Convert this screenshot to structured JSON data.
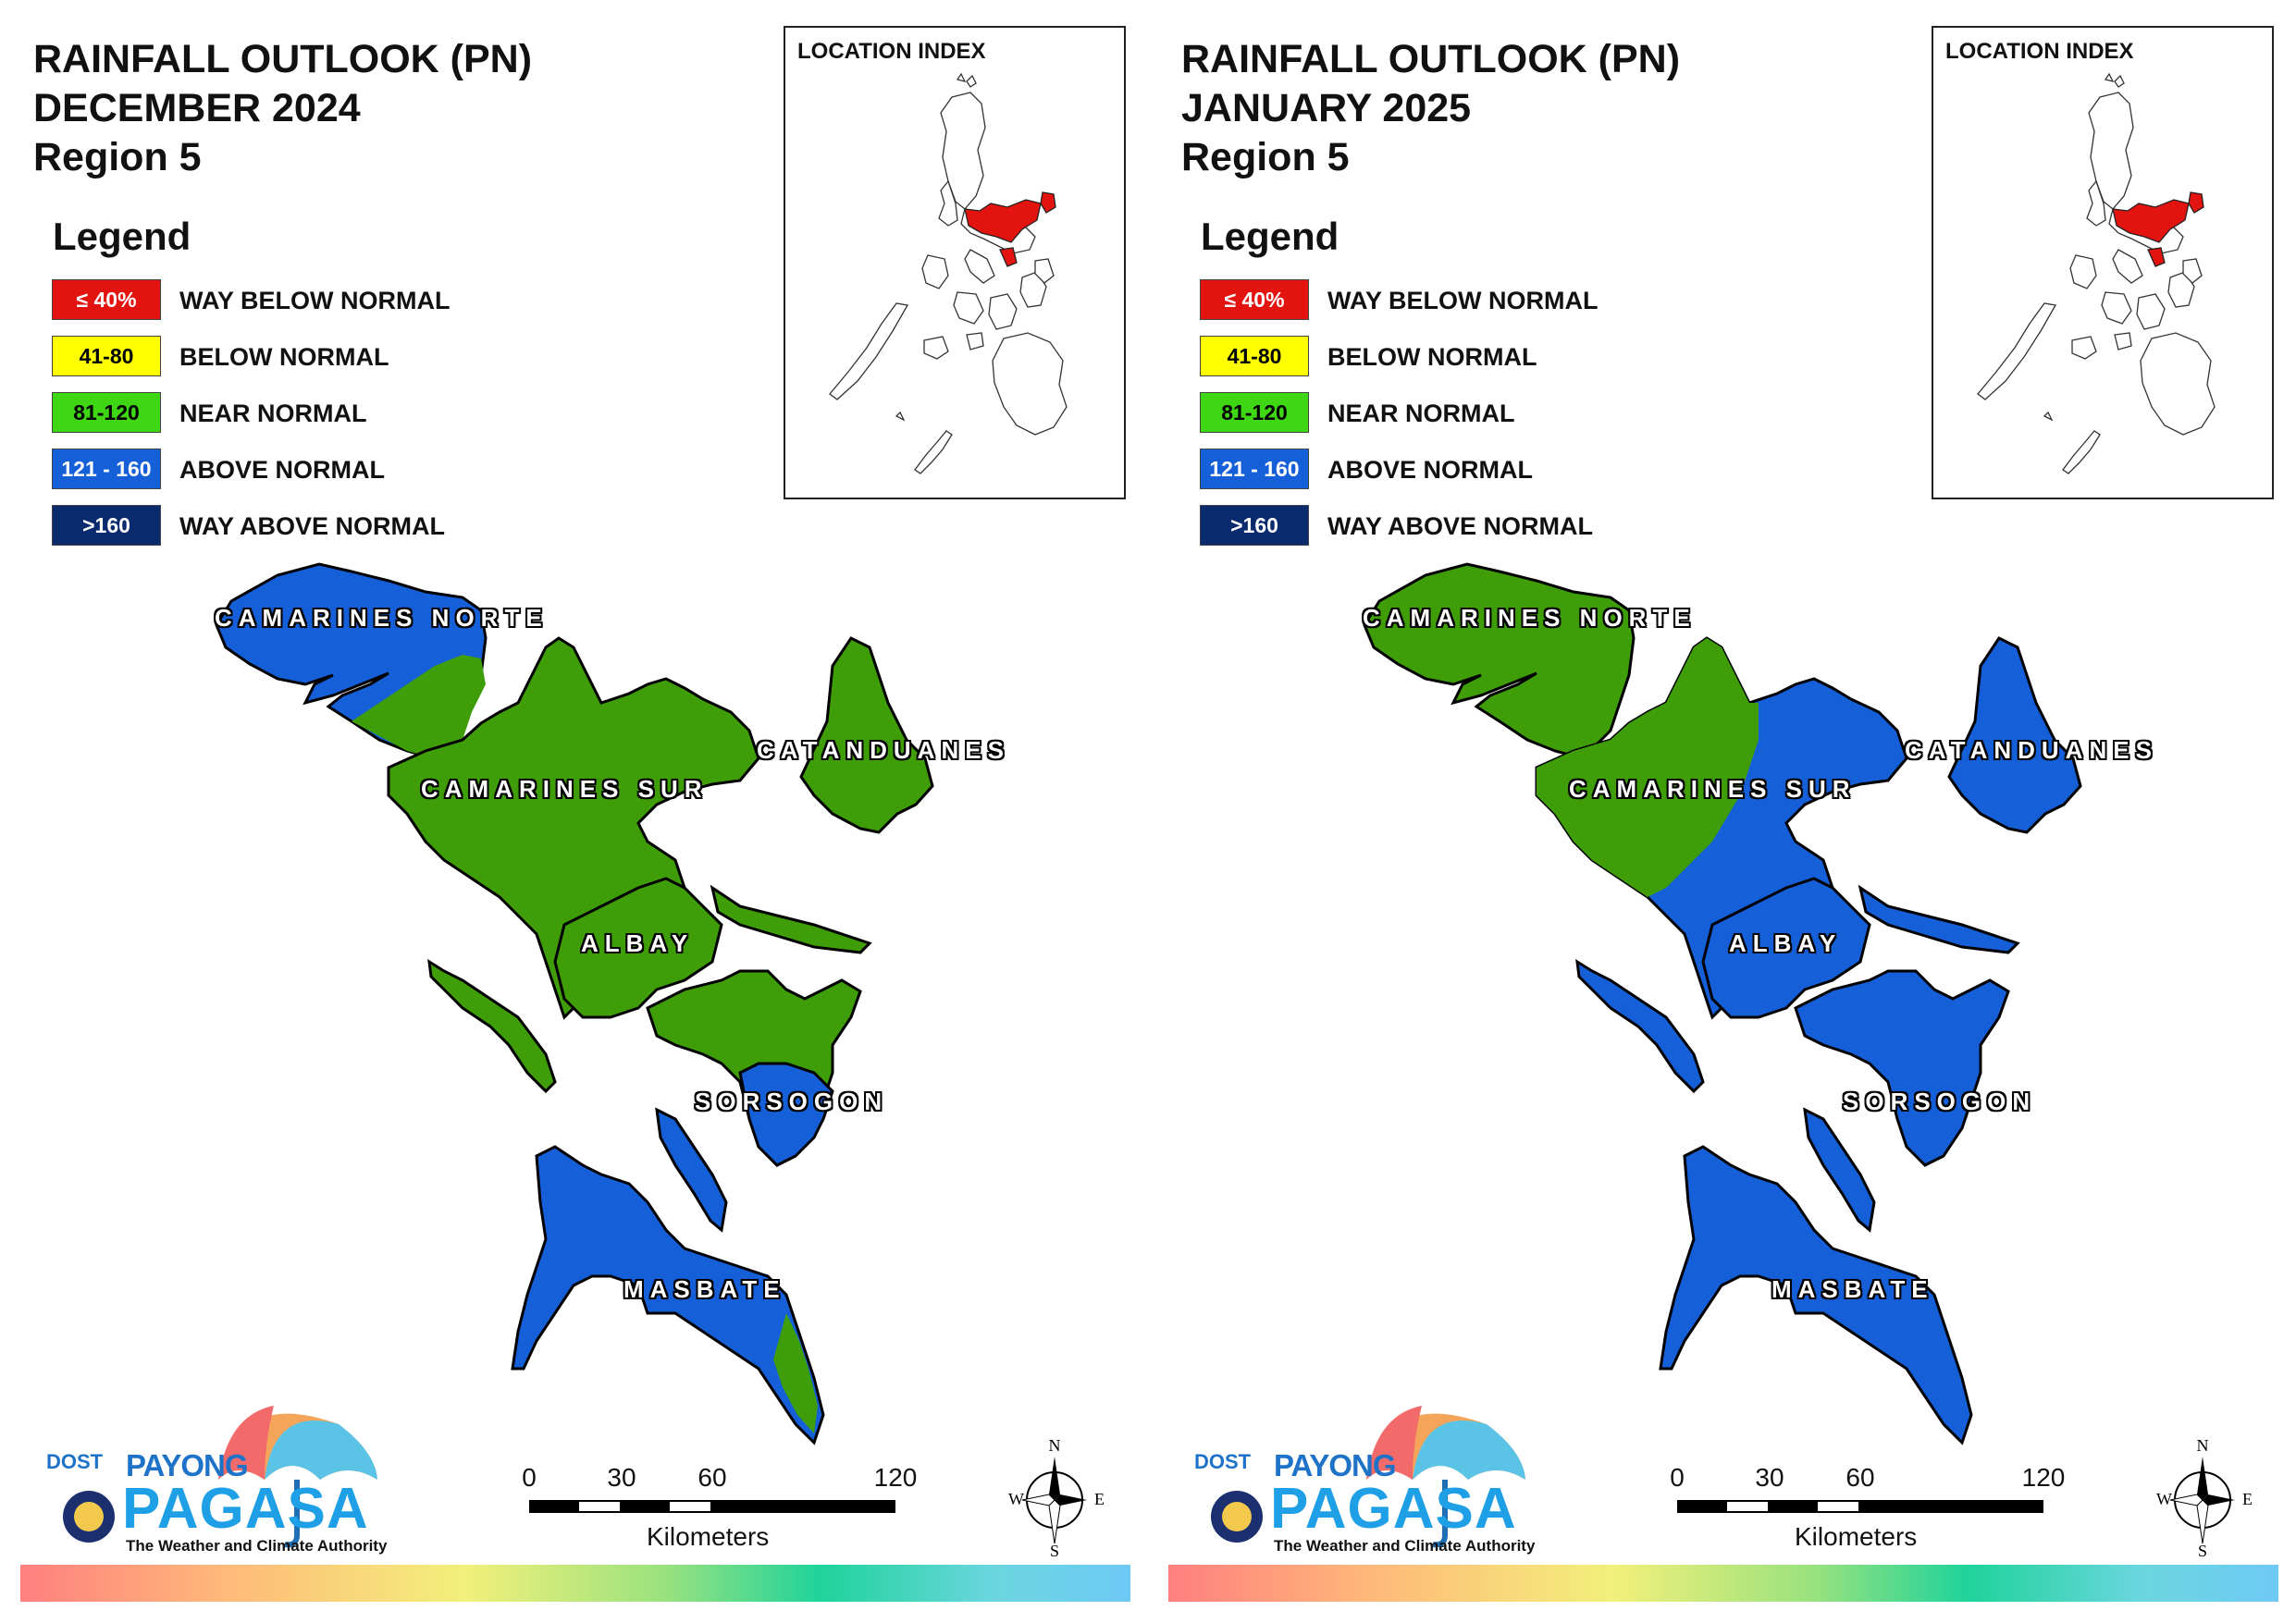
{
  "colors": {
    "way_below": "#e3130f",
    "below": "#ffff00",
    "near": "#3f9e07",
    "above": "#1560d8",
    "way_above": "#0a2a6e",
    "outline": "#000000",
    "index_highlight": "#e3130f"
  },
  "panels": [
    {
      "title_line1": "RAINFALL OUTLOOK (PN)",
      "title_line2": "DECEMBER 2024",
      "title_line3": "Region 5",
      "provinces": {
        "camarines_norte": "green-blue",
        "camarines_sur": "near",
        "catanduanes": "near",
        "albay": "near",
        "sorsogon": "near-above",
        "masbate": "above"
      }
    },
    {
      "title_line1": "RAINFALL OUTLOOK (PN)",
      "title_line2": "JANUARY 2025",
      "title_line3": "Region 5",
      "provinces": {
        "camarines_norte": "near",
        "camarines_sur": "near-above",
        "catanduanes": "above",
        "albay": "above",
        "sorsogon": "above",
        "masbate": "above"
      }
    }
  ],
  "legend": {
    "title": "Legend",
    "items": [
      {
        "range": "≤ 40%",
        "label": "WAY BELOW NORMAL",
        "color": "#e3130f",
        "text_color": "#ffffff"
      },
      {
        "range": "41-80",
        "label": "BELOW NORMAL",
        "color": "#ffff00",
        "text_color": "#000000"
      },
      {
        "range": "81-120",
        "label": "NEAR NORMAL",
        "color": "#3fd614",
        "text_color": "#000000"
      },
      {
        "range": "121 - 160",
        "label": "ABOVE NORMAL",
        "color": "#1560d8",
        "text_color": "#ffffff"
      },
      {
        "range": ">160",
        "label": "WAY ABOVE NORMAL",
        "color": "#0a2a6e",
        "text_color": "#ffffff"
      }
    ]
  },
  "location_index": {
    "title": "LOCATION INDEX"
  },
  "labels": {
    "camarines_norte": "CAMARINES NORTE",
    "camarines_sur": "CAMARINES SUR",
    "catanduanes": "CATANDUANES",
    "albay": "ALBAY",
    "sorsogon": "SORSOGON",
    "masbate": "MASBATE"
  },
  "scale": {
    "ticks": [
      "0",
      "30",
      "60",
      "120"
    ],
    "unit": "Kilometers"
  },
  "compass": {
    "n": "N",
    "s": "S",
    "e": "E",
    "w": "W"
  },
  "brand": {
    "dost": "DOST",
    "payong": "PAYONG",
    "pagasa": "PAGASA",
    "tagline": "The Weather and Climate Authority"
  }
}
